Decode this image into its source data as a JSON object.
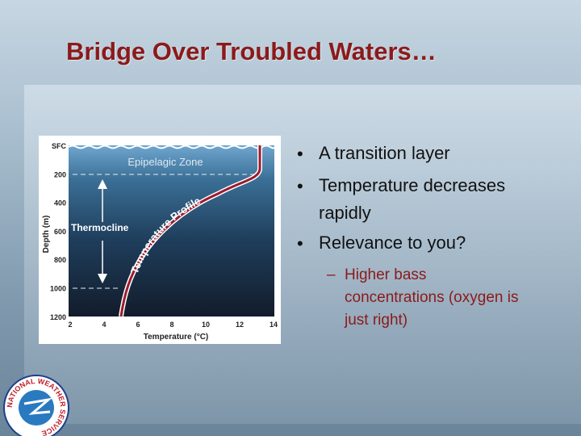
{
  "header": {
    "title": "Bridge Over Troubled Waters…"
  },
  "figure": {
    "zone_label": "Epipelagic Zone",
    "layer_label": "Thermocline",
    "curve_label": "Temperature Profile",
    "y_axis_title": "Depth (m)",
    "x_axis_title": "Temperature (°C)",
    "y_ticks": [
      "SFC",
      200,
      400,
      600,
      800,
      1000,
      1200
    ],
    "x_ticks": [
      2,
      4,
      6,
      8,
      10,
      12,
      14
    ]
  },
  "bullets": [
    {
      "text": "A transition layer"
    },
    {
      "text": "Temperature decreases rapidly"
    },
    {
      "text": "Relevance to you?",
      "sub": [
        "Higher bass concentrations (oxygen is just right)"
      ]
    }
  ],
  "logo": {
    "text": "NATIONAL WEATHER SERVICE"
  }
}
